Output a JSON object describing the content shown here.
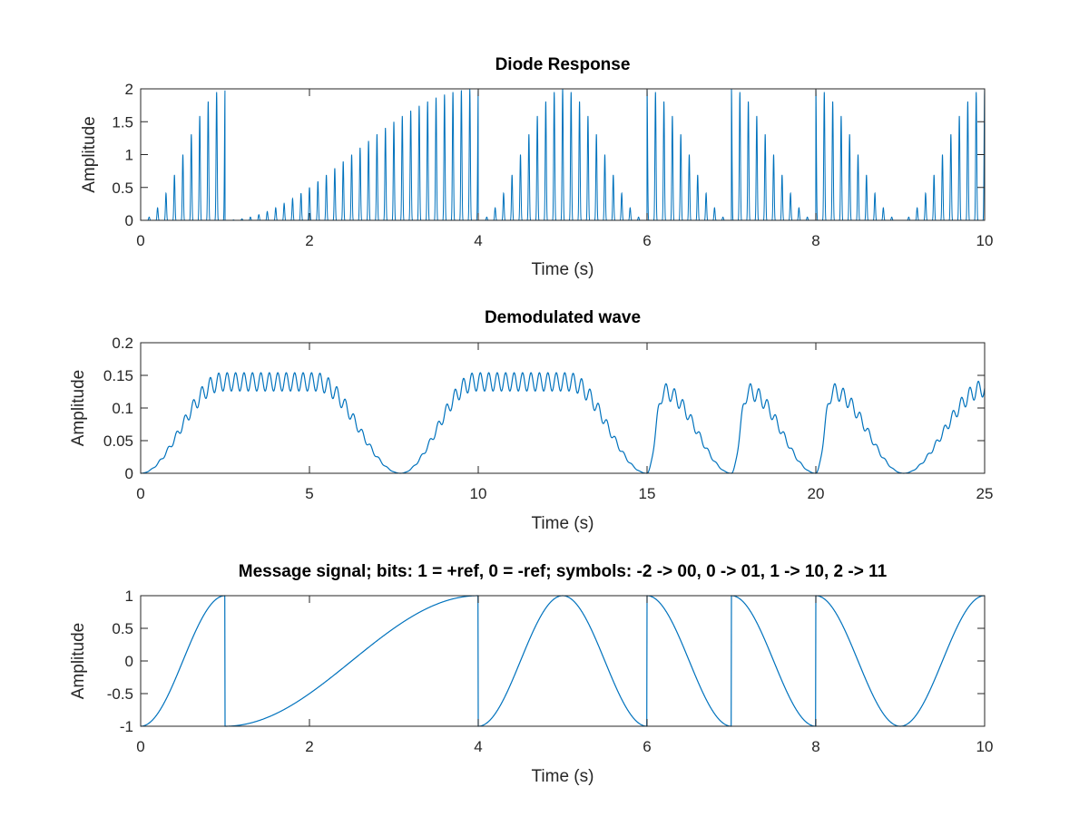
{
  "chart_data": [
    {
      "type": "line",
      "id": "diode",
      "title": "Diode Response",
      "xlabel": "Time (s)",
      "ylabel": "Amplitude",
      "xlim": [
        0,
        10
      ],
      "ylim": [
        0,
        2
      ],
      "xticks": [
        0,
        2,
        4,
        6,
        8,
        10
      ],
      "xtick_labels": [
        "0",
        "2",
        "4",
        "6",
        "8",
        "10"
      ],
      "yticks": [
        0,
        0.5,
        1,
        1.5,
        2
      ],
      "ytick_labels": [
        "0",
        "0.5",
        "1",
        "1.5",
        "2"
      ],
      "series": [
        {
          "name": "Diode Response",
          "color": "#0072BD",
          "style": "carrier-oscillation (rectified, ~10 cycles per second)",
          "envelope": {
            "description": "2 × (1 + message) / 2 envelope of message signal",
            "segments": [
              {
                "t0": 0,
                "t1": 1,
                "start_phase": "min",
                "end_phase": "max"
              },
              {
                "t0": 1,
                "t1": 4,
                "start_phase": "min",
                "end_phase": "max"
              },
              {
                "t0": 4,
                "t1": 6,
                "start_phase": "min",
                "end_phase": "min"
              },
              {
                "t0": 6,
                "t1": 7,
                "start_phase": "max",
                "end_phase": "min"
              },
              {
                "t0": 7,
                "t1": 8,
                "start_phase": "max",
                "end_phase": "min"
              },
              {
                "t0": 8,
                "t1": 10,
                "start_phase": "max",
                "end_phase": "max"
              }
            ]
          }
        }
      ]
    },
    {
      "type": "line",
      "id": "demod",
      "title": "Demodulated wave",
      "xlabel": "Time (s)",
      "ylabel": "Amplitude",
      "xlim": [
        0,
        25
      ],
      "ylim": [
        0,
        0.2
      ],
      "xticks": [
        0,
        5,
        10,
        15,
        20,
        25
      ],
      "xtick_labels": [
        "0",
        "5",
        "10",
        "15",
        "20",
        "25"
      ],
      "yticks": [
        0,
        0.05,
        0.1,
        0.15,
        0.2
      ],
      "ytick_labels": [
        "0",
        "0.05",
        "0.1",
        "0.15",
        "0.2"
      ],
      "series": [
        {
          "name": "Demodulated wave",
          "color": "#0072BD",
          "peak_approx": 0.15,
          "ripple_approx": 0.015,
          "key_points": [
            {
              "t": 0,
              "v": 0
            },
            {
              "t": 2.4,
              "v": 0.14
            },
            {
              "t": 5.2,
              "v": 0.14
            },
            {
              "t": 7.7,
              "v": 0
            },
            {
              "t": 9.9,
              "v": 0.14
            },
            {
              "t": 12.7,
              "v": 0.14
            },
            {
              "t": 15,
              "v": 0
            },
            {
              "t": 15.5,
              "v": 0.125
            },
            {
              "t": 17.5,
              "v": 0
            },
            {
              "t": 18,
              "v": 0.125
            },
            {
              "t": 20,
              "v": 0
            },
            {
              "t": 20.5,
              "v": 0.125
            },
            {
              "t": 22.6,
              "v": 0
            },
            {
              "t": 25,
              "v": 0.13
            }
          ]
        }
      ]
    },
    {
      "type": "line",
      "id": "message",
      "title": "Message signal; bits: 1 = +ref, 0 = -ref; symbols: -2 -> 00, 0 -> 01, 1 -> 10, 2 -> 11",
      "xlabel": "Time (s)",
      "ylabel": "Amplitude",
      "xlim": [
        0,
        10
      ],
      "ylim": [
        -1,
        1
      ],
      "xticks": [
        0,
        2,
        4,
        6,
        8,
        10
      ],
      "xtick_labels": [
        "0",
        "2",
        "4",
        "6",
        "8",
        "10"
      ],
      "yticks": [
        -1,
        -0.5,
        0,
        0.5,
        1
      ],
      "ytick_labels": [
        "-1",
        "-0.5",
        "0",
        "0.5",
        "1"
      ],
      "series": [
        {
          "name": "Message signal",
          "color": "#0072BD",
          "segments": [
            {
              "t0": 0,
              "t1": 1,
              "start_phase": "min",
              "end_phase": "max"
            },
            {
              "t0": 1,
              "t1": 4,
              "start_phase": "min",
              "end_phase": "max"
            },
            {
              "t0": 4,
              "t1": 6,
              "start_phase": "min",
              "end_phase": "min"
            },
            {
              "t0": 6,
              "t1": 7,
              "start_phase": "max",
              "end_phase": "min"
            },
            {
              "t0": 7,
              "t1": 8,
              "start_phase": "max",
              "end_phase": "min"
            },
            {
              "t0": 8,
              "t1": 10,
              "start_phase": "max",
              "end_phase": "max"
            }
          ]
        }
      ]
    }
  ]
}
